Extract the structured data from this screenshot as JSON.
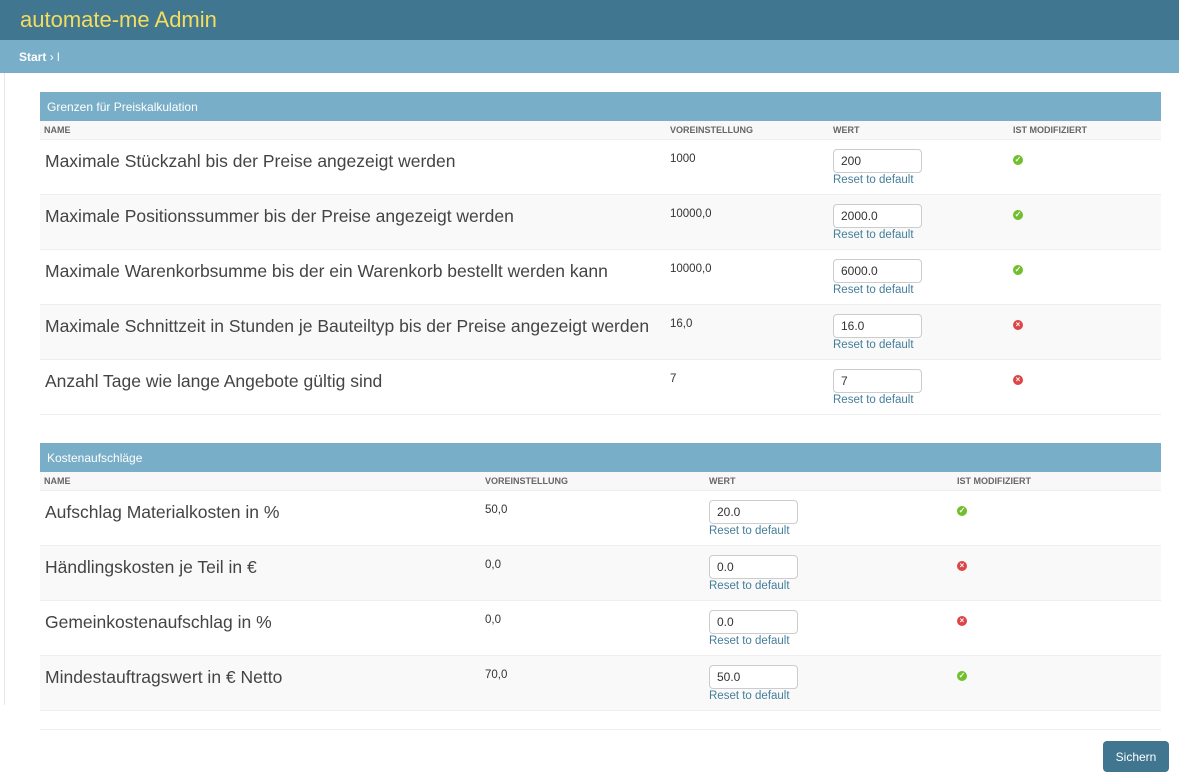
{
  "header": {
    "title": "automate-me Admin"
  },
  "breadcrumb": {
    "home": "Start",
    "separator": "›",
    "current": "l"
  },
  "columns": {
    "name": "NAME",
    "default": "VOREINSTELLUNG",
    "value": "WERT",
    "modified": "IST MODIFIZIERT"
  },
  "reset_label": "Reset to default",
  "fieldsets": [
    {
      "title": "Grenzen für Preiskalkulation",
      "rows": [
        {
          "name": "Maximale Stückzahl bis der Preise angezeigt werden",
          "default": "1000",
          "value": "200",
          "modified": true
        },
        {
          "name": "Maximale Positionssummer bis der Preise angezeigt werden",
          "default": "10000,0",
          "value": "2000.0",
          "modified": true
        },
        {
          "name": "Maximale Warenkorbsumme bis der ein Warenkorb bestellt werden kann",
          "default": "10000,0",
          "value": "6000.0",
          "modified": true
        },
        {
          "name": "Maximale Schnittzeit in Stunden je Bauteiltyp bis der Preise angezeigt werden",
          "default": "16,0",
          "value": "16.0",
          "modified": false
        },
        {
          "name": "Anzahl Tage wie lange Angebote gültig sind",
          "default": "7",
          "value": "7",
          "modified": false
        }
      ]
    },
    {
      "title": "Kostenaufschläge",
      "rows": [
        {
          "name": "Aufschlag Materialkosten in %",
          "default": "50,0",
          "value": "20.0",
          "modified": true
        },
        {
          "name": "Händlingskosten je Teil in €",
          "default": "0,0",
          "value": "0.0",
          "modified": false
        },
        {
          "name": "Gemeinkostenaufschlag in %",
          "default": "0,0",
          "value": "0.0",
          "modified": false
        },
        {
          "name": "Mindestauftragswert in € Netto",
          "default": "70,0",
          "value": "50.0",
          "modified": true
        }
      ]
    }
  ],
  "save_label": "Sichern",
  "colors": {
    "header": "#417690",
    "accent": "#79aec8",
    "ok": "#70bf2b",
    "error": "#dd4646"
  }
}
